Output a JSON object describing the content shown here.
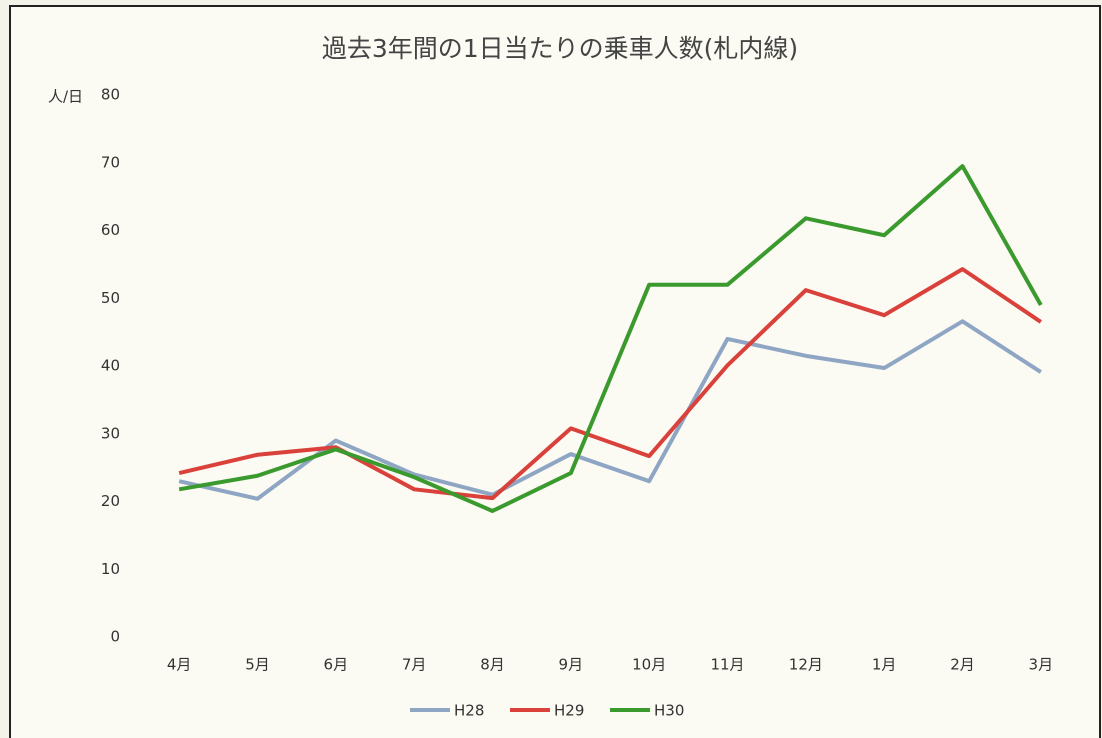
{
  "chart_data": {
    "type": "line",
    "title": "過去3年間の1日当たりの乗車人数(札内線)",
    "ylabel": "人/日",
    "categories": [
      "4月",
      "5月",
      "6月",
      "7月",
      "8月",
      "9月",
      "10月",
      "11月",
      "12月",
      "1月",
      "2月",
      "3月"
    ],
    "series": [
      {
        "name": "H28",
        "color": "#8ea6c4",
        "values": [
          23,
          20.4,
          29,
          24,
          21,
          27,
          23,
          44,
          41.5,
          39.7,
          46.6,
          39.1
        ]
      },
      {
        "name": "H29",
        "color": "#d9413a",
        "values": [
          24.2,
          26.9,
          28,
          21.8,
          20.5,
          30.8,
          26.7,
          40.1,
          51.2,
          47.5,
          54.3,
          46.5
        ]
      },
      {
        "name": "H30",
        "color": "#3a9a2e",
        "values": [
          21.8,
          23.8,
          27.7,
          23.6,
          18.6,
          24.2,
          52,
          52,
          61.8,
          59.3,
          69.5,
          49
        ]
      }
    ],
    "ylim": [
      0,
      80
    ],
    "yticks": [
      0,
      10,
      20,
      30,
      40,
      50,
      60,
      70,
      80
    ],
    "grid": false,
    "legend": "bottom"
  }
}
